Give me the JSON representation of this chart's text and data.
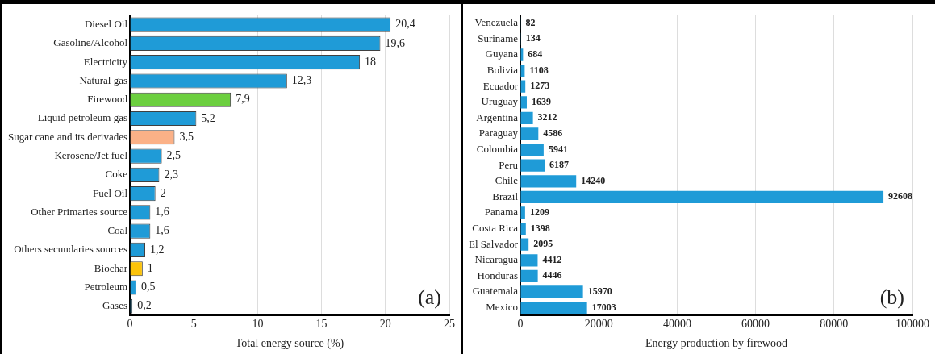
{
  "chart_data": [
    {
      "type": "bar",
      "orientation": "horizontal",
      "xlabel": "Total energy source (%)",
      "categories": [
        "Diesel Oil",
        "Gasoline/Alcohol",
        "Electricity",
        "Natural gas",
        "Firewood",
        "Liquid petroleum gas",
        "Sugar cane and its derivades",
        "Kerosene/Jet fuel",
        "Coke",
        "Fuel Oil",
        "Other Primaries source",
        "Coal",
        "Others secundaries sources",
        "Biochar",
        "Petroleum",
        "Gases"
      ],
      "values": [
        20.4,
        19.6,
        18,
        12.3,
        7.9,
        5.2,
        3.5,
        2.5,
        2.3,
        2,
        1.6,
        1.6,
        1.2,
        1,
        0.5,
        0.2
      ],
      "value_labels": [
        "20,4",
        "19,6",
        "18",
        "12,3",
        "7,9",
        "5,2",
        "3,5",
        "2,5",
        "2,3",
        "2",
        "1,6",
        "1,6",
        "1,2",
        "1",
        "0,5",
        "0,2"
      ],
      "colors": [
        "#1f9bd7",
        "#1f9bd7",
        "#1f9bd7",
        "#1f9bd7",
        "#6ccf3f",
        "#1f9bd7",
        "#fbb187",
        "#1f9bd7",
        "#1f9bd7",
        "#1f9bd7",
        "#1f9bd7",
        "#1f9bd7",
        "#1f9bd7",
        "#fcc30a",
        "#1f9bd7",
        "#1f9bd7"
      ],
      "xlim": [
        0,
        25
      ],
      "xticks": [
        0,
        5,
        10,
        15,
        20,
        25
      ],
      "grid": "x",
      "legend": false,
      "annotations": [
        "(a)"
      ]
    },
    {
      "type": "bar",
      "orientation": "horizontal",
      "xlabel": "Energy production by firewood",
      "categories": [
        "Venezuela",
        "Suriname",
        "Guyana",
        "Bolivia",
        "Ecuador",
        "Uruguay",
        "Argentina",
        "Paraguay",
        "Colombia",
        "Peru",
        "Chile",
        "Brazil",
        "Panama",
        "Costa Rica",
        "El Salvador",
        "Nicaragua",
        "Honduras",
        "Guatemala",
        "Mexico"
      ],
      "values": [
        82,
        134,
        684,
        1108,
        1273,
        1639,
        3212,
        4586,
        5941,
        6187,
        14240,
        92608,
        1209,
        1398,
        2095,
        4412,
        4446,
        15970,
        17003
      ],
      "color": "#1f9bd7",
      "data_labels": true,
      "xlim": [
        0,
        100000
      ],
      "xticks": [
        0,
        20000,
        40000,
        60000,
        80000,
        100000
      ],
      "grid": "x",
      "legend": false,
      "annotations": [
        "(b)"
      ]
    }
  ]
}
